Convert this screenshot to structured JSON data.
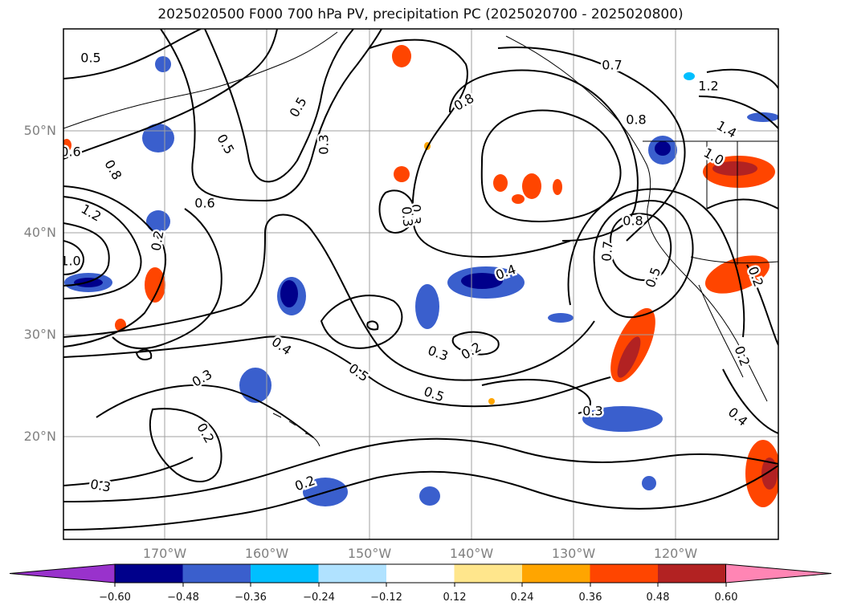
{
  "title": "2025020500 F000 700 hPa PV, precipitation PC (2025020700 - 2025020800)",
  "map": {
    "lat_labels": [
      "50°N",
      "40°N",
      "30°N",
      "20°N"
    ],
    "lon_labels": [
      "170°W",
      "160°W",
      "150°W",
      "140°W",
      "130°W",
      "120°W"
    ],
    "contour_labels": [
      "0.5",
      "0.6",
      "0.8",
      "1.2",
      "1.0",
      "0.5",
      "0.6",
      "0.2",
      "0.3",
      "0.3",
      "0.5",
      "0.8",
      "0.7",
      "1.2",
      "1.4",
      "0.8",
      "1.0",
      "0.8",
      "0.4",
      "0.3",
      "0.2",
      "0.4",
      "0.5",
      "0.5",
      "0.3",
      "0.2",
      "0.3",
      "0.2",
      "0.3",
      "0.3",
      "0.2",
      "0.2",
      "0.4",
      "0.7",
      "0.5"
    ]
  },
  "colorbar": {
    "ticks": [
      "−0.60",
      "−0.48",
      "−0.36",
      "−0.24",
      "−0.12",
      "0.12",
      "0.24",
      "0.36",
      "0.48",
      "0.60"
    ],
    "colors": [
      "#9932cc",
      "#00008b",
      "#3a5fcd",
      "#00bfff",
      "#b0e2ff",
      "#ffffff",
      "#ffe68c",
      "#ffa500",
      "#ff4500",
      "#b22222",
      "#ff85b4"
    ]
  }
}
